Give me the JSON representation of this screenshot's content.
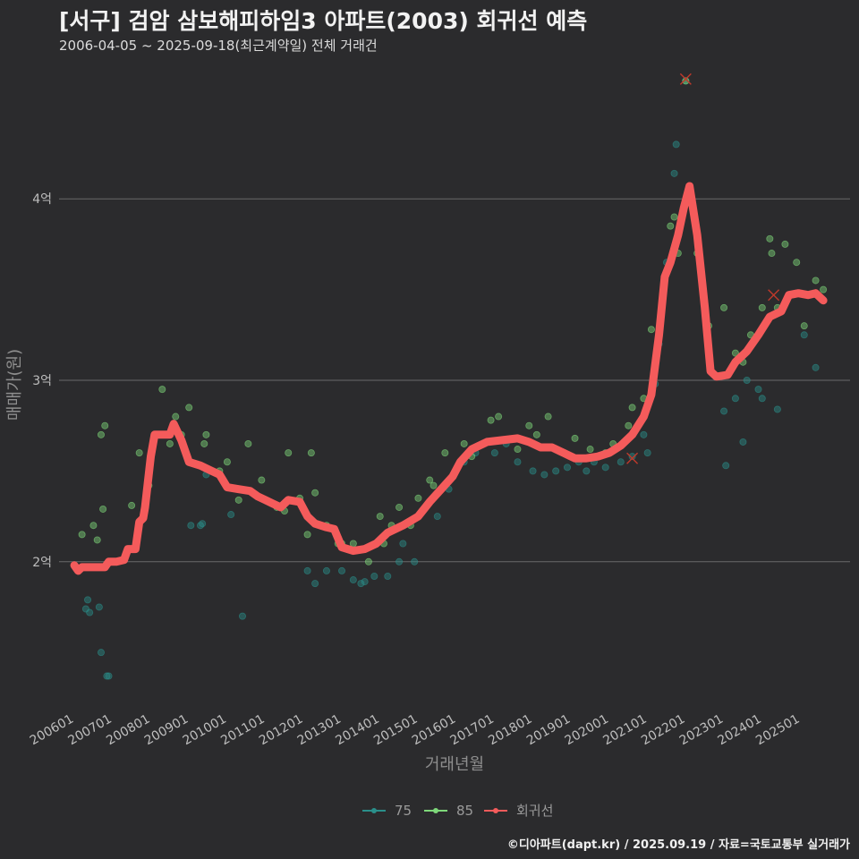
{
  "title": "[서구] 검암 삼보해피하임3 아파트(2003) 회귀선 예측",
  "subtitle": "2006-04-05 ~ 2025-09-18(최근계약일) 전체 거래건",
  "credit": "©디아파트(dapt.kr) / 2025.09.19 / 자료=국토교통부 실거래가",
  "colors": {
    "s75": "#2a8f8a",
    "s85": "#7ed87a",
    "reg": "#f45b5b",
    "grid": "#6a6a6a",
    "bg": "#2b2b2d"
  },
  "chart_data": {
    "type": "scatter",
    "xlabel": "거래년월",
    "ylabel": "매매가(원)",
    "x_tick_labels": [
      "200601",
      "200701",
      "200801",
      "200901",
      "201001",
      "201101",
      "201201",
      "201301",
      "201401",
      "201501",
      "201601",
      "201701",
      "201801",
      "201901",
      "202001",
      "202101",
      "202201",
      "202301",
      "202401",
      "202501"
    ],
    "y_ticks": [
      {
        "value": 2.0,
        "label": "2억"
      },
      {
        "value": 3.0,
        "label": "3억"
      },
      {
        "value": 4.0,
        "label": "4억"
      }
    ],
    "ylim": [
      1.2,
      4.8
    ],
    "xlim": [
      2005.6,
      2026.3
    ],
    "legend": [
      "75",
      "85",
      "회귀선"
    ],
    "series": [
      {
        "name": "75",
        "points": [
          [
            2006.3,
            1.74
          ],
          [
            2006.35,
            1.79
          ],
          [
            2006.4,
            1.72
          ],
          [
            2006.65,
            1.75
          ],
          [
            2006.7,
            1.5
          ],
          [
            2006.85,
            1.37
          ],
          [
            2006.9,
            1.37
          ],
          [
            2009.05,
            2.2
          ],
          [
            2009.3,
            2.2
          ],
          [
            2009.35,
            2.21
          ],
          [
            2009.45,
            2.48
          ],
          [
            2010.1,
            2.26
          ],
          [
            2010.4,
            1.7
          ],
          [
            2012.1,
            1.95
          ],
          [
            2012.3,
            1.88
          ],
          [
            2012.6,
            1.95
          ],
          [
            2013.0,
            1.95
          ],
          [
            2013.3,
            1.9
          ],
          [
            2013.5,
            1.88
          ],
          [
            2013.6,
            1.89
          ],
          [
            2013.85,
            1.92
          ],
          [
            2014.2,
            1.92
          ],
          [
            2014.5,
            2.0
          ],
          [
            2014.6,
            2.1
          ],
          [
            2014.9,
            2.0
          ],
          [
            2015.1,
            2.28
          ],
          [
            2015.5,
            2.25
          ],
          [
            2015.8,
            2.4
          ],
          [
            2016.2,
            2.55
          ],
          [
            2016.5,
            2.6
          ],
          [
            2017.0,
            2.6
          ],
          [
            2017.3,
            2.65
          ],
          [
            2017.6,
            2.55
          ],
          [
            2018.0,
            2.5
          ],
          [
            2018.3,
            2.48
          ],
          [
            2018.6,
            2.5
          ],
          [
            2018.9,
            2.52
          ],
          [
            2019.2,
            2.55
          ],
          [
            2019.4,
            2.5
          ],
          [
            2019.6,
            2.55
          ],
          [
            2019.9,
            2.52
          ],
          [
            2020.3,
            2.55
          ],
          [
            2020.6,
            2.58
          ],
          [
            2020.9,
            2.7
          ],
          [
            2021.0,
            2.6
          ],
          [
            2021.2,
            2.98
          ],
          [
            2021.3,
            3.2
          ],
          [
            2021.5,
            3.65
          ],
          [
            2021.7,
            4.14
          ],
          [
            2021.75,
            4.3
          ],
          [
            2022.0,
            4.65
          ],
          [
            2023.0,
            2.83
          ],
          [
            2023.05,
            2.53
          ],
          [
            2023.3,
            2.9
          ],
          [
            2023.5,
            2.66
          ],
          [
            2023.6,
            3.0
          ],
          [
            2023.9,
            2.95
          ],
          [
            2024.0,
            2.9
          ],
          [
            2024.4,
            2.84
          ],
          [
            2025.1,
            3.25
          ],
          [
            2025.4,
            3.07
          ]
        ]
      },
      {
        "name": "85",
        "points": [
          [
            2006.2,
            2.15
          ],
          [
            2006.5,
            2.2
          ],
          [
            2006.6,
            2.12
          ],
          [
            2006.7,
            2.7
          ],
          [
            2006.8,
            2.75
          ],
          [
            2006.75,
            2.29
          ],
          [
            2007.5,
            2.31
          ],
          [
            2007.7,
            2.6
          ],
          [
            2007.95,
            2.42
          ],
          [
            2008.3,
            2.95
          ],
          [
            2008.5,
            2.65
          ],
          [
            2008.65,
            2.8
          ],
          [
            2008.8,
            2.7
          ],
          [
            2009.0,
            2.85
          ],
          [
            2009.4,
            2.65
          ],
          [
            2009.45,
            2.7
          ],
          [
            2009.8,
            2.5
          ],
          [
            2010.0,
            2.55
          ],
          [
            2010.3,
            2.34
          ],
          [
            2010.55,
            2.65
          ],
          [
            2010.9,
            2.45
          ],
          [
            2011.3,
            2.3
          ],
          [
            2011.5,
            2.28
          ],
          [
            2011.6,
            2.6
          ],
          [
            2011.9,
            2.35
          ],
          [
            2012.1,
            2.15
          ],
          [
            2012.2,
            2.6
          ],
          [
            2012.3,
            2.38
          ],
          [
            2012.6,
            2.2
          ],
          [
            2012.9,
            2.1
          ],
          [
            2013.0,
            2.1
          ],
          [
            2013.3,
            2.1
          ],
          [
            2013.7,
            2.0
          ],
          [
            2014.0,
            2.25
          ],
          [
            2014.1,
            2.1
          ],
          [
            2014.3,
            2.2
          ],
          [
            2014.5,
            2.3
          ],
          [
            2014.8,
            2.2
          ],
          [
            2015.0,
            2.35
          ],
          [
            2015.3,
            2.45
          ],
          [
            2015.4,
            2.42
          ],
          [
            2015.7,
            2.6
          ],
          [
            2016.2,
            2.65
          ],
          [
            2016.4,
            2.58
          ],
          [
            2016.9,
            2.78
          ],
          [
            2017.1,
            2.8
          ],
          [
            2017.6,
            2.62
          ],
          [
            2017.9,
            2.75
          ],
          [
            2018.1,
            2.7
          ],
          [
            2018.4,
            2.8
          ],
          [
            2018.8,
            2.6
          ],
          [
            2019.1,
            2.68
          ],
          [
            2019.5,
            2.62
          ],
          [
            2019.9,
            2.6
          ],
          [
            2020.1,
            2.65
          ],
          [
            2020.5,
            2.75
          ],
          [
            2020.6,
            2.85
          ],
          [
            2020.9,
            2.9
          ],
          [
            2021.1,
            3.28
          ],
          [
            2021.4,
            3.45
          ],
          [
            2021.6,
            3.85
          ],
          [
            2021.7,
            3.9
          ],
          [
            2021.8,
            3.7
          ],
          [
            2022.0,
            4.65
          ],
          [
            2022.3,
            3.7
          ],
          [
            2022.6,
            3.3
          ],
          [
            2023.0,
            3.4
          ],
          [
            2023.3,
            3.15
          ],
          [
            2023.5,
            3.1
          ],
          [
            2023.7,
            3.25
          ],
          [
            2024.0,
            3.4
          ],
          [
            2024.2,
            3.78
          ],
          [
            2024.25,
            3.7
          ],
          [
            2024.4,
            3.4
          ],
          [
            2024.6,
            3.75
          ],
          [
            2024.9,
            3.65
          ],
          [
            2025.1,
            3.3
          ],
          [
            2025.4,
            3.55
          ],
          [
            2025.6,
            3.5
          ]
        ]
      },
      {
        "name": "회귀선",
        "points": [
          [
            2006.0,
            1.98
          ],
          [
            2006.1,
            1.95
          ],
          [
            2006.2,
            1.97
          ],
          [
            2006.6,
            1.97
          ],
          [
            2006.8,
            1.97
          ],
          [
            2006.9,
            2.0
          ],
          [
            2007.1,
            2.0
          ],
          [
            2007.3,
            2.01
          ],
          [
            2007.4,
            2.07
          ],
          [
            2007.6,
            2.07
          ],
          [
            2007.7,
            2.22
          ],
          [
            2007.8,
            2.24
          ],
          [
            2007.85,
            2.3
          ],
          [
            2008.0,
            2.58
          ],
          [
            2008.1,
            2.7
          ],
          [
            2008.3,
            2.7
          ],
          [
            2008.5,
            2.7
          ],
          [
            2008.6,
            2.76
          ],
          [
            2008.8,
            2.67
          ],
          [
            2009.0,
            2.55
          ],
          [
            2009.3,
            2.53
          ],
          [
            2009.6,
            2.5
          ],
          [
            2009.8,
            2.48
          ],
          [
            2010.0,
            2.41
          ],
          [
            2010.3,
            2.4
          ],
          [
            2010.6,
            2.39
          ],
          [
            2010.8,
            2.36
          ],
          [
            2011.0,
            2.34
          ],
          [
            2011.2,
            2.32
          ],
          [
            2011.4,
            2.3
          ],
          [
            2011.6,
            2.34
          ],
          [
            2011.9,
            2.33
          ],
          [
            2012.1,
            2.25
          ],
          [
            2012.3,
            2.21
          ],
          [
            2012.6,
            2.19
          ],
          [
            2012.8,
            2.18
          ],
          [
            2013.0,
            2.08
          ],
          [
            2013.3,
            2.06
          ],
          [
            2013.6,
            2.07
          ],
          [
            2013.9,
            2.1
          ],
          [
            2014.2,
            2.16
          ],
          [
            2014.6,
            2.2
          ],
          [
            2015.0,
            2.25
          ],
          [
            2015.3,
            2.33
          ],
          [
            2015.6,
            2.4
          ],
          [
            2015.9,
            2.47
          ],
          [
            2016.1,
            2.55
          ],
          [
            2016.4,
            2.62
          ],
          [
            2016.8,
            2.66
          ],
          [
            2017.2,
            2.67
          ],
          [
            2017.6,
            2.68
          ],
          [
            2017.9,
            2.66
          ],
          [
            2018.2,
            2.63
          ],
          [
            2018.5,
            2.63
          ],
          [
            2018.8,
            2.6
          ],
          [
            2019.1,
            2.57
          ],
          [
            2019.4,
            2.57
          ],
          [
            2019.7,
            2.58
          ],
          [
            2020.0,
            2.6
          ],
          [
            2020.3,
            2.64
          ],
          [
            2020.6,
            2.7
          ],
          [
            2020.9,
            2.8
          ],
          [
            2021.1,
            2.92
          ],
          [
            2021.3,
            3.25
          ],
          [
            2021.45,
            3.57
          ],
          [
            2021.6,
            3.65
          ],
          [
            2021.8,
            3.8
          ],
          [
            2021.95,
            3.95
          ],
          [
            2022.1,
            4.07
          ],
          [
            2022.3,
            3.8
          ],
          [
            2022.5,
            3.4
          ],
          [
            2022.65,
            3.05
          ],
          [
            2022.8,
            3.02
          ],
          [
            2023.1,
            3.03
          ],
          [
            2023.3,
            3.1
          ],
          [
            2023.6,
            3.16
          ],
          [
            2023.9,
            3.25
          ],
          [
            2024.2,
            3.35
          ],
          [
            2024.5,
            3.38
          ],
          [
            2024.7,
            3.47
          ],
          [
            2024.95,
            3.48
          ],
          [
            2025.2,
            3.47
          ],
          [
            2025.4,
            3.48
          ],
          [
            2025.6,
            3.44
          ]
        ]
      }
    ],
    "outlier_marks": [
      [
        2022.0,
        4.66
      ],
      [
        2020.6,
        2.57
      ],
      [
        2024.3,
        3.47
      ]
    ]
  }
}
